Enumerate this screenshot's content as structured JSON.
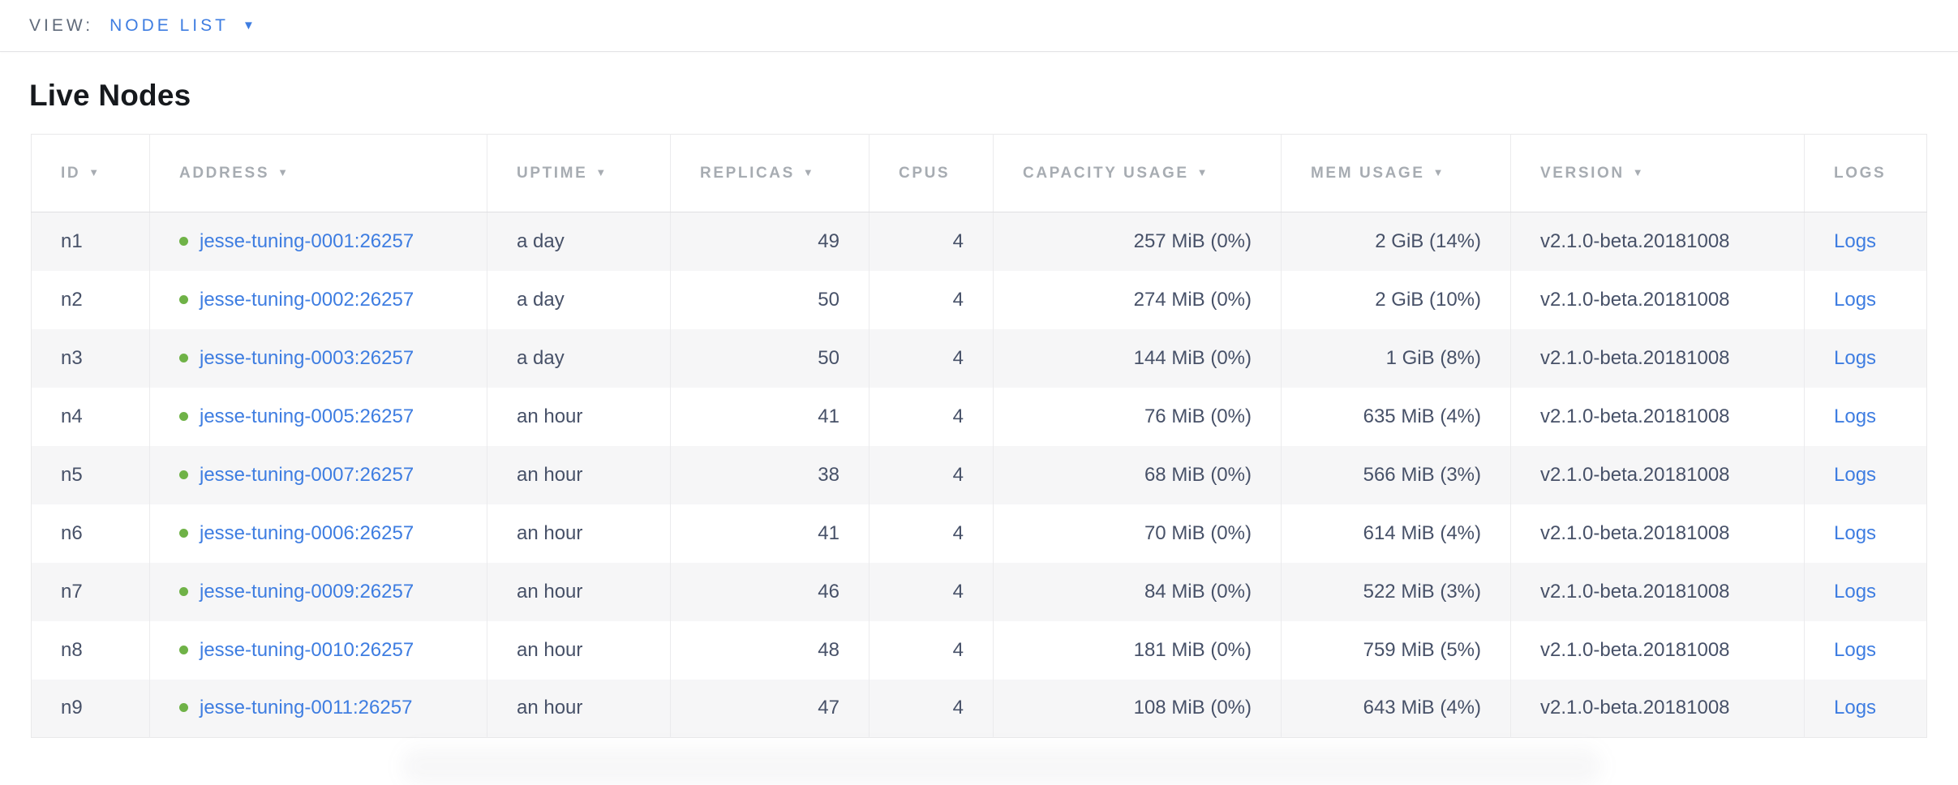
{
  "view_bar": {
    "label": "VIEW:",
    "selected": "NODE LIST"
  },
  "page": {
    "title": "Live Nodes"
  },
  "icons": {
    "dropdown": "▼",
    "sort_desc": "▼"
  },
  "colors": {
    "link_blue": "#3e7de1",
    "status_green": "#6fb247",
    "header_text": "#a7acb2",
    "body_text": "#475168",
    "row_stripe": "#f6f6f7"
  },
  "table": {
    "columns": [
      {
        "key": "id",
        "label": "ID",
        "sortable": true,
        "align": "left"
      },
      {
        "key": "address",
        "label": "ADDRESS",
        "sortable": true,
        "align": "left"
      },
      {
        "key": "uptime",
        "label": "UPTIME",
        "sortable": true,
        "align": "left"
      },
      {
        "key": "replicas",
        "label": "REPLICAS",
        "sortable": true,
        "align": "right"
      },
      {
        "key": "cpus",
        "label": "CPUS",
        "sortable": false,
        "align": "right"
      },
      {
        "key": "capacity_usage",
        "label": "CAPACITY USAGE",
        "sortable": true,
        "align": "right"
      },
      {
        "key": "mem_usage",
        "label": "MEM USAGE",
        "sortable": true,
        "align": "right"
      },
      {
        "key": "version",
        "label": "VERSION",
        "sortable": true,
        "align": "left"
      },
      {
        "key": "logs",
        "label": "LOGS",
        "sortable": false,
        "align": "left"
      }
    ],
    "rows": [
      {
        "id": "n1",
        "status": "healthy",
        "address": "jesse-tuning-0001:26257",
        "uptime": "a day",
        "replicas": "49",
        "cpus": "4",
        "capacity_usage": "257 MiB (0%)",
        "mem_usage": "2 GiB (14%)",
        "version": "v2.1.0-beta.20181008",
        "logs_label": "Logs"
      },
      {
        "id": "n2",
        "status": "healthy",
        "address": "jesse-tuning-0002:26257",
        "uptime": "a day",
        "replicas": "50",
        "cpus": "4",
        "capacity_usage": "274 MiB (0%)",
        "mem_usage": "2 GiB (10%)",
        "version": "v2.1.0-beta.20181008",
        "logs_label": "Logs"
      },
      {
        "id": "n3",
        "status": "healthy",
        "address": "jesse-tuning-0003:26257",
        "uptime": "a day",
        "replicas": "50",
        "cpus": "4",
        "capacity_usage": "144 MiB (0%)",
        "mem_usage": "1 GiB (8%)",
        "version": "v2.1.0-beta.20181008",
        "logs_label": "Logs"
      },
      {
        "id": "n4",
        "status": "healthy",
        "address": "jesse-tuning-0005:26257",
        "uptime": "an hour",
        "replicas": "41",
        "cpus": "4",
        "capacity_usage": "76 MiB (0%)",
        "mem_usage": "635 MiB (4%)",
        "version": "v2.1.0-beta.20181008",
        "logs_label": "Logs"
      },
      {
        "id": "n5",
        "status": "healthy",
        "address": "jesse-tuning-0007:26257",
        "uptime": "an hour",
        "replicas": "38",
        "cpus": "4",
        "capacity_usage": "68 MiB (0%)",
        "mem_usage": "566 MiB (3%)",
        "version": "v2.1.0-beta.20181008",
        "logs_label": "Logs"
      },
      {
        "id": "n6",
        "status": "healthy",
        "address": "jesse-tuning-0006:26257",
        "uptime": "an hour",
        "replicas": "41",
        "cpus": "4",
        "capacity_usage": "70 MiB (0%)",
        "mem_usage": "614 MiB (4%)",
        "version": "v2.1.0-beta.20181008",
        "logs_label": "Logs"
      },
      {
        "id": "n7",
        "status": "healthy",
        "address": "jesse-tuning-0009:26257",
        "uptime": "an hour",
        "replicas": "46",
        "cpus": "4",
        "capacity_usage": "84 MiB (0%)",
        "mem_usage": "522 MiB (3%)",
        "version": "v2.1.0-beta.20181008",
        "logs_label": "Logs"
      },
      {
        "id": "n8",
        "status": "healthy",
        "address": "jesse-tuning-0010:26257",
        "uptime": "an hour",
        "replicas": "48",
        "cpus": "4",
        "capacity_usage": "181 MiB (0%)",
        "mem_usage": "759 MiB (5%)",
        "version": "v2.1.0-beta.20181008",
        "logs_label": "Logs"
      },
      {
        "id": "n9",
        "status": "healthy",
        "address": "jesse-tuning-0011:26257",
        "uptime": "an hour",
        "replicas": "47",
        "cpus": "4",
        "capacity_usage": "108 MiB (0%)",
        "mem_usage": "643 MiB (4%)",
        "version": "v2.1.0-beta.20181008",
        "logs_label": "Logs"
      }
    ]
  }
}
